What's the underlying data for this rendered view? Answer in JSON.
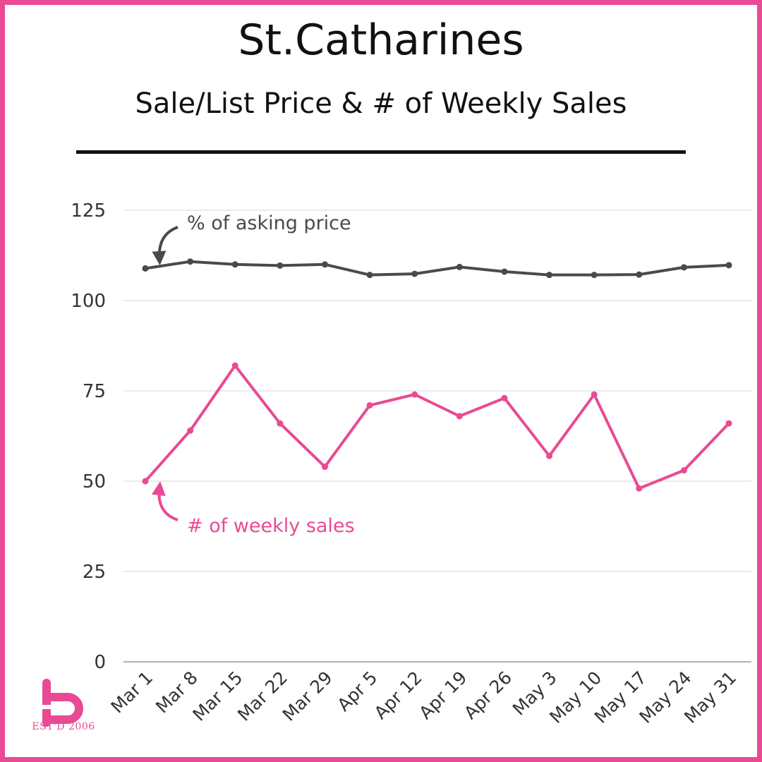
{
  "header": {
    "title": "St.Catharines",
    "subtitle": "Sale/List Price & # of Weekly Sales"
  },
  "chart_data": {
    "type": "line",
    "categories": [
      "Mar 1",
      "Mar 8",
      "Mar 15",
      "Mar 22",
      "Mar 29",
      "Apr 5",
      "Apr 12",
      "Apr 19",
      "Apr 26",
      "May 3",
      "May 10",
      "May 17",
      "May 24",
      "May 31"
    ],
    "series": [
      {
        "name": "% of asking price",
        "color": "#4a4a4a",
        "values": [
          108.9,
          110.8,
          110.0,
          109.7,
          110.0,
          107.1,
          107.4,
          109.3,
          108.0,
          107.1,
          107.1,
          107.2,
          109.2,
          109.8
        ]
      },
      {
        "name": "# of weekly sales",
        "color": "#e94a93",
        "values": [
          50,
          64,
          82,
          66,
          54,
          71,
          74,
          68,
          73,
          57,
          74,
          48,
          53,
          66
        ]
      }
    ],
    "yticks": [
      0,
      25,
      50,
      75,
      100,
      125
    ],
    "ylim": [
      0,
      125
    ],
    "grid": true,
    "legend": "inline annotations"
  },
  "logo": {
    "text": "EST'D 2006",
    "color": "#e94a93"
  }
}
